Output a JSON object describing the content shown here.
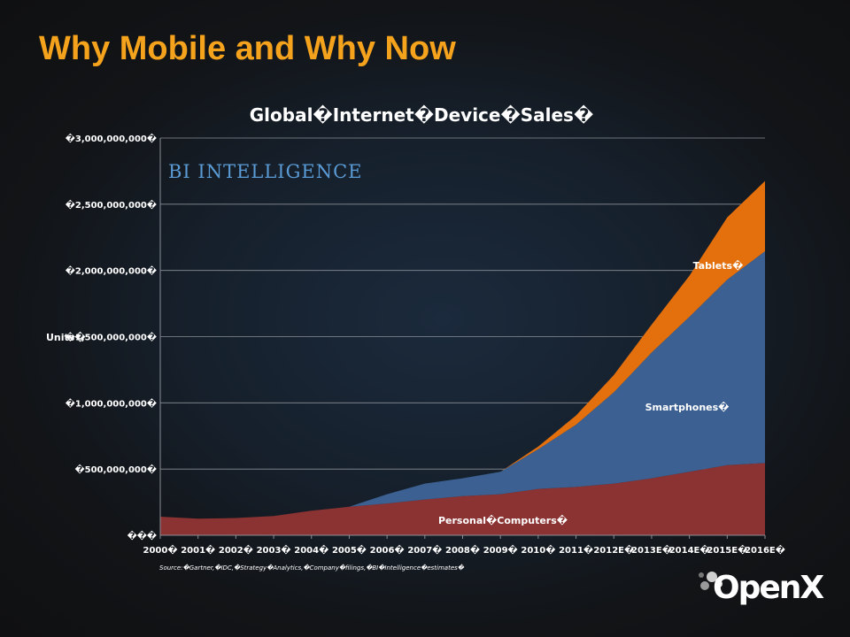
{
  "slide": {
    "title": "Why Mobile and Why Now",
    "logo_text": "OpenX",
    "logo_icon": "openx-bubbles-icon"
  },
  "chart_data": {
    "type": "area",
    "stacked": true,
    "title": "Global�Internet�Device�Sales�",
    "ylabel": "Units�",
    "xlabel": "",
    "brand": "BI INTELLIGENCE",
    "source": "Source:�Gartner,�IDC,�Strategy�Analytics,�Company�filings,�BI�Intelligence�estimates�",
    "grid": true,
    "ylim": [
      0,
      3000000000
    ],
    "y_ticks": [
      0,
      500000000,
      1000000000,
      1500000000,
      2000000000,
      2500000000,
      3000000000
    ],
    "y_tick_labels": [
      "���",
      "�500,000,000�",
      "�1,000,000,000�",
      "�1,500,000,000�",
      "�2,000,000,000�",
      "�2,500,000,000�",
      "�3,000,000,000�"
    ],
    "categories": [
      "2000�",
      "2001�",
      "2002�",
      "2003�",
      "2004�",
      "2005�",
      "2006�",
      "2007�",
      "2008�",
      "2009�",
      "2010�",
      "2011�",
      "2012E�",
      "2013E�",
      "2014E�",
      "2015E�",
      "2016E�"
    ],
    "series": [
      {
        "name": "Personal�Computers�",
        "color": "#8b3232",
        "values": [
          140000000,
          125000000,
          130000000,
          145000000,
          185000000,
          215000000,
          240000000,
          270000000,
          295000000,
          310000000,
          350000000,
          365000000,
          390000000,
          430000000,
          480000000,
          530000000,
          545000000
        ]
      },
      {
        "name": "Smartphones�",
        "color": "#3b6091",
        "values": [
          0,
          0,
          0,
          0,
          0,
          0,
          70000000,
          120000000,
          135000000,
          170000000,
          300000000,
          470000000,
          690000000,
          950000000,
          1170000000,
          1400000000,
          1600000000
        ]
      },
      {
        "name": "Tablets�",
        "color": "#e4700d",
        "values": [
          0,
          0,
          0,
          0,
          0,
          0,
          0,
          0,
          0,
          0,
          20000000,
          70000000,
          130000000,
          210000000,
          310000000,
          470000000,
          530000000
        ]
      }
    ]
  }
}
